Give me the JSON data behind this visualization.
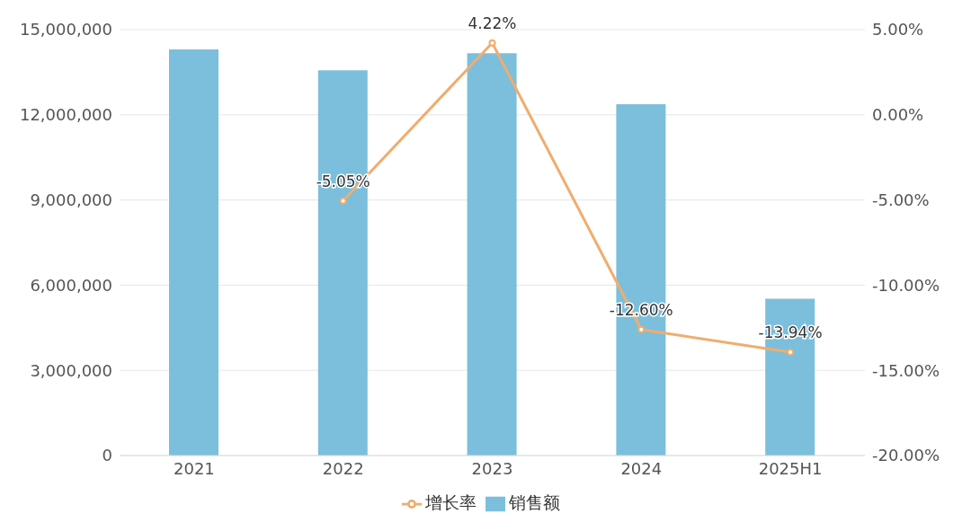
{
  "chart_data": {
    "type": "bar",
    "categories": [
      "2021",
      "2022",
      "2023",
      "2024",
      "2025H1"
    ],
    "series": [
      {
        "name": "销售额",
        "color": "#7bbfdc",
        "values": [
          14300000,
          13570000,
          14170000,
          12370000,
          5520000
        ]
      },
      {
        "name": "增长率",
        "type": "line",
        "axis": "y2",
        "color": "#f0ad6e",
        "values": [
          null,
          -5.05,
          4.22,
          -12.6,
          -13.94
        ],
        "value_labels": [
          null,
          "-5.05%",
          "4.22%",
          "-12.60%",
          "-13.94%"
        ]
      }
    ],
    "ylim": [
      0,
      15000000
    ],
    "yticks": [
      {
        "value": 0,
        "label": "0"
      },
      {
        "value": 3000000,
        "label": "3,000,000"
      },
      {
        "value": 6000000,
        "label": "6,000,000"
      },
      {
        "value": 9000000,
        "label": "9,000,000"
      },
      {
        "value": 12000000,
        "label": "12,000,000"
      },
      {
        "value": 15000000,
        "label": "15,000,000"
      }
    ],
    "y2lim": [
      -20,
      5
    ],
    "y2ticks": [
      {
        "value": -20,
        "label": "-20.00%"
      },
      {
        "value": -15,
        "label": "-15.00%"
      },
      {
        "value": -10,
        "label": "-10.00%"
      },
      {
        "value": -5,
        "label": "-5.00%"
      },
      {
        "value": 0,
        "label": "0.00%"
      },
      {
        "value": 5,
        "label": "5.00%"
      }
    ],
    "grid": "y",
    "legend": "bottom",
    "marker": "circle",
    "line_style": "solid"
  }
}
